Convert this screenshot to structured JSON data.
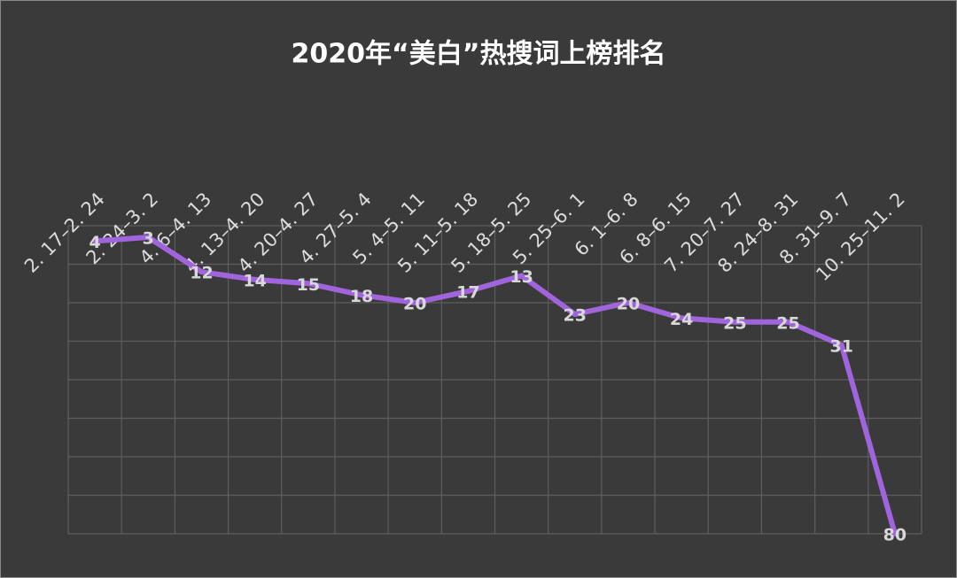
{
  "chart_data": {
    "type": "line",
    "title": "2020年“美白”热搜词上榜排名",
    "categories": [
      "2. 17–2. 24",
      "2. 24–3. 2",
      "4. 6–4. 13",
      "4. 13–4. 20",
      "4. 20–4. 27",
      "4. 27–5. 4",
      "5. 4–5. 11",
      "5. 11–5. 18",
      "5. 18–5. 25",
      "5. 25–6. 1",
      "6. 1–6. 8",
      "6. 8–6. 15",
      "7. 20–7. 27",
      "8. 24–8. 31",
      "8. 31–9. 7",
      "10. 25–11. 2"
    ],
    "values": [
      4,
      3,
      12,
      14,
      15,
      18,
      20,
      17,
      13,
      23,
      20,
      24,
      25,
      25,
      31,
      80
    ],
    "color": "#a064dc",
    "ylim": [
      0,
      80
    ],
    "y_inverted": true,
    "yticks": [
      0,
      10,
      20,
      30,
      40,
      50,
      60,
      70,
      80
    ],
    "grid": true
  }
}
